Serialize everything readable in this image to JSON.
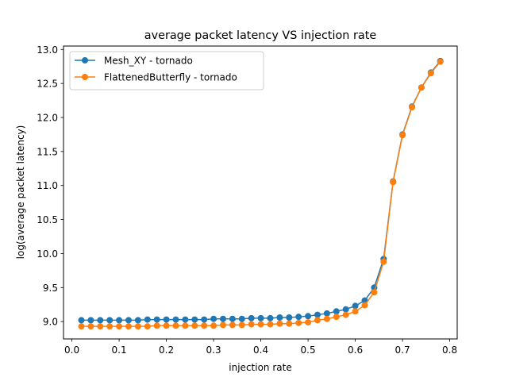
{
  "chart_data": {
    "type": "line",
    "title": "average packet latency VS injection rate",
    "xlabel": "injection rate",
    "ylabel": "log(average packet latency)",
    "xlim": [
      -0.0178,
      0.8158
    ],
    "ylim": [
      8.745,
      13.05
    ],
    "xticks": [
      "0.0",
      "0.1",
      "0.2",
      "0.3",
      "0.4",
      "0.5",
      "0.6",
      "0.7",
      "0.8"
    ],
    "yticks": [
      "9.0",
      "9.5",
      "10.0",
      "10.5",
      "11.0",
      "11.5",
      "12.0",
      "12.5",
      "13.0"
    ],
    "grid": false,
    "legend_position": "upper-left",
    "x": [
      0.02,
      0.04,
      0.06,
      0.08,
      0.1,
      0.12,
      0.14,
      0.16,
      0.18,
      0.2,
      0.22,
      0.24,
      0.26,
      0.28,
      0.3,
      0.32,
      0.34,
      0.36,
      0.38,
      0.4,
      0.42,
      0.44,
      0.46,
      0.48,
      0.5,
      0.52,
      0.54,
      0.56,
      0.58,
      0.6,
      0.62,
      0.64,
      0.66,
      0.68,
      0.7,
      0.72,
      0.74,
      0.76,
      0.78
    ],
    "series": [
      {
        "name": "Mesh_XY - tornado",
        "color": "#1f77b4",
        "values": [
          9.02,
          9.02,
          9.02,
          9.02,
          9.02,
          9.02,
          9.02,
          9.03,
          9.03,
          9.03,
          9.03,
          9.03,
          9.03,
          9.03,
          9.04,
          9.04,
          9.04,
          9.04,
          9.05,
          9.05,
          9.05,
          9.06,
          9.06,
          9.07,
          9.08,
          9.1,
          9.12,
          9.15,
          9.18,
          9.23,
          9.31,
          9.5,
          9.92,
          11.06,
          11.75,
          12.16,
          12.44,
          12.66,
          12.83
        ]
      },
      {
        "name": "FlattenedButterfly - tornado",
        "color": "#ff7f0e",
        "values": [
          8.93,
          8.93,
          8.93,
          8.93,
          8.93,
          8.93,
          8.93,
          8.93,
          8.94,
          8.94,
          8.94,
          8.94,
          8.94,
          8.94,
          8.94,
          8.95,
          8.95,
          8.95,
          8.96,
          8.96,
          8.96,
          8.97,
          8.97,
          8.98,
          8.99,
          9.02,
          9.04,
          9.07,
          9.1,
          9.15,
          9.24,
          9.43,
          9.88,
          11.05,
          11.74,
          12.15,
          12.44,
          12.65,
          12.82
        ]
      }
    ]
  }
}
